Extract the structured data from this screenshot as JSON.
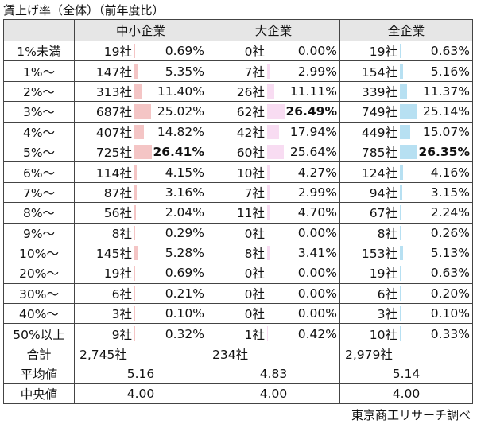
{
  "title": "賃上げ率（全体）（前年度比）",
  "headers": [
    "",
    "中小企業",
    "大企業",
    "全企業"
  ],
  "rows": [
    {
      "cat": "1%未満",
      "small": {
        "c": "19社",
        "p": "0.69%",
        "v": 0.69
      },
      "large": {
        "c": "0社",
        "p": "0.00%",
        "v": 0.0
      },
      "all": {
        "c": "19社",
        "p": "0.63%",
        "v": 0.63
      }
    },
    {
      "cat": "1%～",
      "small": {
        "c": "147社",
        "p": "5.35%",
        "v": 5.35
      },
      "large": {
        "c": "7社",
        "p": "2.99%",
        "v": 2.99
      },
      "all": {
        "c": "154社",
        "p": "5.16%",
        "v": 5.16
      }
    },
    {
      "cat": "2%～",
      "small": {
        "c": "313社",
        "p": "11.40%",
        "v": 11.4
      },
      "large": {
        "c": "26社",
        "p": "11.11%",
        "v": 11.11
      },
      "all": {
        "c": "339社",
        "p": "11.37%",
        "v": 11.37
      }
    },
    {
      "cat": "3%～",
      "small": {
        "c": "687社",
        "p": "25.02%",
        "v": 25.02
      },
      "large": {
        "c": "62社",
        "p": "26.49%",
        "v": 26.49,
        "bold": true
      },
      "all": {
        "c": "749社",
        "p": "25.14%",
        "v": 25.14
      }
    },
    {
      "cat": "4%～",
      "small": {
        "c": "407社",
        "p": "14.82%",
        "v": 14.82
      },
      "large": {
        "c": "42社",
        "p": "17.94%",
        "v": 17.94
      },
      "all": {
        "c": "449社",
        "p": "15.07%",
        "v": 15.07
      }
    },
    {
      "cat": "5%～",
      "small": {
        "c": "725社",
        "p": "26.41%",
        "v": 26.41,
        "bold": true
      },
      "large": {
        "c": "60社",
        "p": "25.64%",
        "v": 25.64
      },
      "all": {
        "c": "785社",
        "p": "26.35%",
        "v": 26.35,
        "bold": true
      }
    },
    {
      "cat": "6%～",
      "small": {
        "c": "114社",
        "p": "4.15%",
        "v": 4.15
      },
      "large": {
        "c": "10社",
        "p": "4.27%",
        "v": 4.27
      },
      "all": {
        "c": "124社",
        "p": "4.16%",
        "v": 4.16
      }
    },
    {
      "cat": "7%～",
      "small": {
        "c": "87社",
        "p": "3.16%",
        "v": 3.16
      },
      "large": {
        "c": "7社",
        "p": "2.99%",
        "v": 2.99
      },
      "all": {
        "c": "94社",
        "p": "3.15%",
        "v": 3.15
      }
    },
    {
      "cat": "8%～",
      "small": {
        "c": "56社",
        "p": "2.04%",
        "v": 2.04
      },
      "large": {
        "c": "11社",
        "p": "4.70%",
        "v": 4.7
      },
      "all": {
        "c": "67社",
        "p": "2.24%",
        "v": 2.24
      }
    },
    {
      "cat": "9%～",
      "small": {
        "c": "8社",
        "p": "0.29%",
        "v": 0.29
      },
      "large": {
        "c": "0社",
        "p": "0.00%",
        "v": 0.0
      },
      "all": {
        "c": "8社",
        "p": "0.26%",
        "v": 0.26
      }
    },
    {
      "cat": "10%～",
      "small": {
        "c": "145社",
        "p": "5.28%",
        "v": 5.28
      },
      "large": {
        "c": "8社",
        "p": "3.41%",
        "v": 3.41
      },
      "all": {
        "c": "153社",
        "p": "5.13%",
        "v": 5.13
      }
    },
    {
      "cat": "20%～",
      "small": {
        "c": "19社",
        "p": "0.69%",
        "v": 0.69
      },
      "large": {
        "c": "0社",
        "p": "0.00%",
        "v": 0.0
      },
      "all": {
        "c": "19社",
        "p": "0.63%",
        "v": 0.63
      }
    },
    {
      "cat": "30%～",
      "small": {
        "c": "6社",
        "p": "0.21%",
        "v": 0.21
      },
      "large": {
        "c": "0社",
        "p": "0.00%",
        "v": 0.0
      },
      "all": {
        "c": "6社",
        "p": "0.20%",
        "v": 0.2
      }
    },
    {
      "cat": "40%～",
      "small": {
        "c": "3社",
        "p": "0.10%",
        "v": 0.1
      },
      "large": {
        "c": "0社",
        "p": "0.00%",
        "v": 0.0
      },
      "all": {
        "c": "3社",
        "p": "0.10%",
        "v": 0.1
      }
    },
    {
      "cat": "50%以上",
      "small": {
        "c": "9社",
        "p": "0.32%",
        "v": 0.32
      },
      "large": {
        "c": "1社",
        "p": "0.42%",
        "v": 0.42
      },
      "all": {
        "c": "10社",
        "p": "0.33%",
        "v": 0.33
      }
    }
  ],
  "summary": [
    {
      "label": "合計",
      "small": "2,745社",
      "large": "234社",
      "all": "2,979社",
      "align": "left"
    },
    {
      "label": "平均値",
      "small": "5.16",
      "large": "4.83",
      "all": "5.14",
      "align": "center"
    },
    {
      "label": "中央値",
      "small": "4.00",
      "large": "4.00",
      "all": "4.00",
      "align": "center"
    }
  ],
  "credit": "東京商工リサーチ調べ",
  "colors": {
    "small": "#f4c5c5",
    "large": "#f8dcf2",
    "all": "#b7e0f2"
  }
}
